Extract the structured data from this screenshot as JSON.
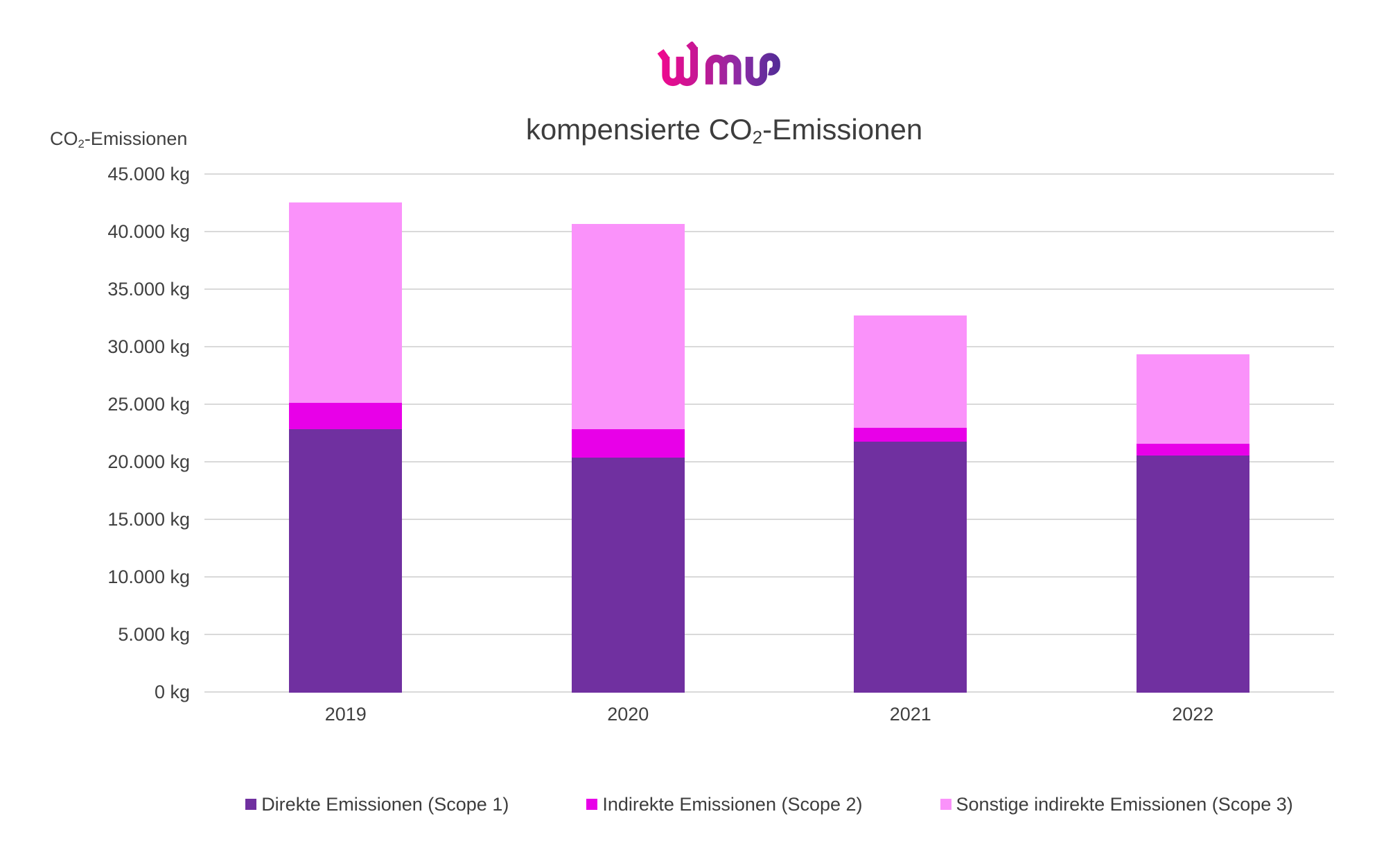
{
  "logo": {
    "alt": "wdm"
  },
  "header": {
    "title_pre": "kompensierte CO",
    "title_sub": "2",
    "title_post": "-Emissionen"
  },
  "y_axis": {
    "label_pre": "CO",
    "label_sub": "2",
    "label_post": "-Emissionen"
  },
  "chart_data": {
    "type": "bar",
    "stacked": true,
    "title": "kompensierte CO2-Emissionen",
    "ylabel": "CO2-Emissionen",
    "xlabel": "",
    "categories": [
      "2019",
      "2020",
      "2021",
      "2022"
    ],
    "series": [
      {
        "name": "Direkte Emissionen (Scope 1)",
        "color": "#7030A0",
        "values": [
          22900,
          20400,
          21800,
          20600
        ]
      },
      {
        "name": "Indirekte Emissionen (Scope 2)",
        "color": "#E800E8",
        "values": [
          2300,
          2500,
          1200,
          1000
        ]
      },
      {
        "name": "Sonstige indirekte Emissionen (Scope 3)",
        "color": "#FA92FA",
        "values": [
          17400,
          17800,
          9800,
          7800
        ]
      }
    ],
    "stack_totals": [
      42600,
      40700,
      32800,
      29400
    ],
    "unit": "kg",
    "ylim": [
      0,
      45000
    ],
    "ytick_step": 5000,
    "ytick_labels": [
      "0 kg",
      "5.000 kg",
      "10.000 kg",
      "15.000 kg",
      "20.000 kg",
      "25.000 kg",
      "30.000 kg",
      "35.000 kg",
      "40.000 kg",
      "45.000 kg"
    ],
    "grid": true,
    "legend_position": "bottom",
    "colors": {
      "grid": "#D9D9D9",
      "text": "#404040"
    }
  }
}
